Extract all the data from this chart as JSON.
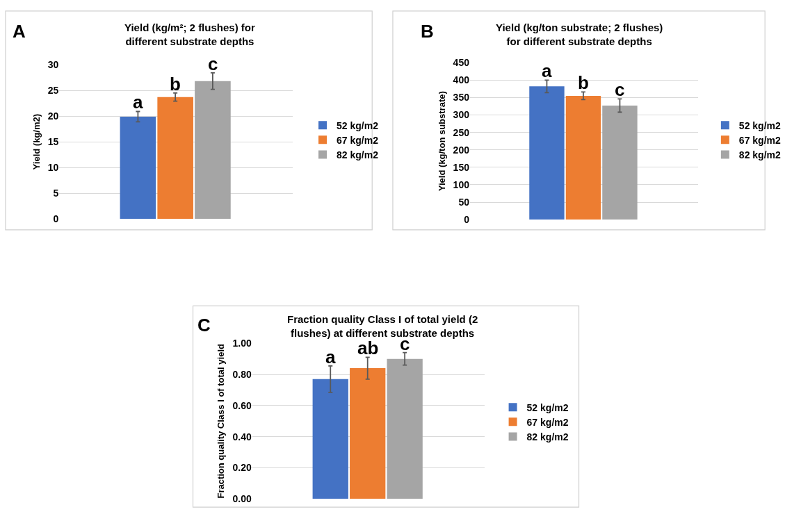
{
  "chart_data": [
    {
      "type": "bar",
      "title": "Yield (kg/m²; 2 flushes) for different substrate depths",
      "ylabel": "Yield (kg/m2)",
      "annotations": [
        "A"
      ],
      "categories": [
        null
      ],
      "ylim": [
        0,
        30
      ],
      "yticks": [
        0,
        5,
        10,
        15,
        20,
        25,
        30
      ],
      "grid": "y",
      "legend": "right",
      "tick_labels": "y",
      "series": [
        {
          "name": "52 kg/m2",
          "color": "#4472c4",
          "values": [
            19.9
          ],
          "errors": [
            1.0
          ],
          "value_labels": [
            "a"
          ]
        },
        {
          "name": "67 kg/m2",
          "color": "#ed7d31",
          "values": [
            23.7
          ],
          "errors": [
            0.8
          ],
          "value_labels": [
            "b"
          ]
        },
        {
          "name": "82 kg/m2",
          "color": "#a5a5a5",
          "values": [
            26.8
          ],
          "errors": [
            1.6
          ],
          "value_labels": [
            "c"
          ]
        }
      ]
    },
    {
      "type": "bar",
      "title": "Yield (kg/ton substrate; 2 flushes) for different substrate depths",
      "ylabel": "Yield (kg/ton substrate)",
      "annotations": [
        "B"
      ],
      "categories": [
        null
      ],
      "ylim": [
        0,
        450
      ],
      "yticks": [
        0,
        50,
        100,
        150,
        200,
        250,
        300,
        350,
        400,
        450
      ],
      "grid": "y",
      "legend": "right",
      "tick_labels": "y",
      "series": [
        {
          "name": "52 kg/m2",
          "color": "#4472c4",
          "values": [
            382
          ],
          "errors": [
            18
          ],
          "value_labels": [
            "a"
          ]
        },
        {
          "name": "67 kg/m2",
          "color": "#ed7d31",
          "values": [
            355
          ],
          "errors": [
            11
          ],
          "value_labels": [
            "b"
          ]
        },
        {
          "name": "82 kg/m2",
          "color": "#a5a5a5",
          "values": [
            327
          ],
          "errors": [
            19
          ],
          "value_labels": [
            "c"
          ]
        }
      ]
    },
    {
      "type": "bar",
      "title": "Fraction quality Class I of total yield (2 flushes) at different substrate depths",
      "ylabel": "Fraction quality Class I of total yield",
      "annotations": [
        "C"
      ],
      "categories": [
        null
      ],
      "ylim": [
        0,
        1
      ],
      "yticks": [
        {
          "value": 0,
          "label": "0.00"
        },
        {
          "value": 0.2,
          "label": "0.20"
        },
        {
          "value": 0.4,
          "label": "0.40"
        },
        {
          "value": 0.6,
          "label": "0.60"
        },
        {
          "value": 0.8,
          "label": "0.80"
        },
        {
          "value": 1,
          "label": "1.00"
        }
      ],
      "grid": "y",
      "legend": "right",
      "tick_labels": "y",
      "series": [
        {
          "name": "52 kg/m2",
          "color": "#4472c4",
          "values": [
            0.77
          ],
          "errors": [
            0.085
          ],
          "value_labels": [
            "a"
          ]
        },
        {
          "name": "67 kg/m2",
          "color": "#ed7d31",
          "values": [
            0.84
          ],
          "errors": [
            0.07
          ],
          "value_labels": [
            "ab"
          ]
        },
        {
          "name": "82 kg/m2",
          "color": "#a5a5a5",
          "values": [
            0.9
          ],
          "errors": [
            0.04
          ],
          "value_labels": [
            "c"
          ]
        }
      ]
    }
  ]
}
